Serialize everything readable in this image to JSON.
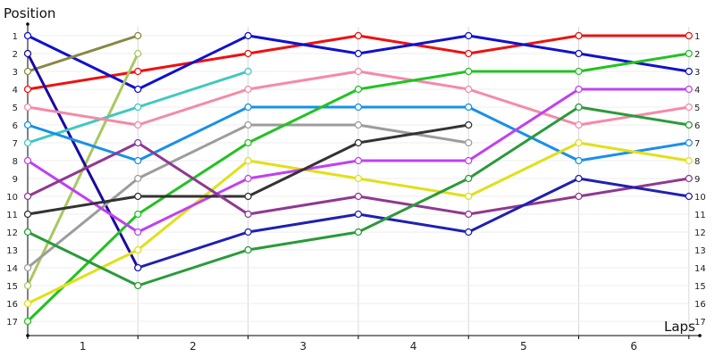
{
  "chart_data": {
    "type": "line",
    "ylabel": "Position",
    "xlabel": "Laps",
    "x": [
      0,
      1,
      2,
      3,
      4,
      5,
      6
    ],
    "x_tick_labels": [
      "1",
      "2",
      "3",
      "4",
      "5",
      "6"
    ],
    "y_tick_labels": [
      "1",
      "2",
      "3",
      "4",
      "5",
      "6",
      "7",
      "8",
      "9",
      "10",
      "11",
      "12",
      "13",
      "14",
      "15",
      "16",
      "17"
    ],
    "ylim": [
      1,
      17
    ],
    "y_inverted": true,
    "grid": true,
    "series": [
      {
        "color": "#ee1111",
        "values": [
          4,
          3,
          2,
          1,
          2,
          1,
          1
        ]
      },
      {
        "color": "#1111cc",
        "values": [
          1,
          4,
          1,
          2,
          1,
          2,
          3
        ]
      },
      {
        "color": "#888844",
        "values": [
          3,
          1,
          null,
          null,
          null,
          null,
          null
        ]
      },
      {
        "color": "#a8c860",
        "values": [
          15,
          2,
          null,
          null,
          null,
          null,
          null
        ]
      },
      {
        "color": "#1a0aa0",
        "values": [
          2,
          14,
          null,
          null,
          null,
          null,
          null
        ]
      },
      {
        "color": "#40c8c0",
        "values": [
          7,
          5,
          3,
          null,
          null,
          null,
          null
        ]
      },
      {
        "color": "#f48aa8",
        "values": [
          5,
          6,
          4,
          3,
          4,
          6,
          5
        ]
      },
      {
        "color": "#1890e8",
        "values": [
          6,
          8,
          5,
          5,
          5,
          8,
          7
        ]
      },
      {
        "color": "#9c9c9c",
        "values": [
          14,
          9,
          6,
          6,
          7,
          null,
          null
        ]
      },
      {
        "color": "#22c222",
        "values": [
          17,
          11,
          7,
          4,
          3,
          3,
          2
        ]
      },
      {
        "color": "#e0e018",
        "values": [
          16,
          13,
          8,
          9,
          10,
          7,
          8
        ]
      },
      {
        "color": "#c040f0",
        "values": [
          8,
          12,
          9,
          8,
          8,
          4,
          4
        ]
      },
      {
        "color": "#333333",
        "values": [
          11,
          10,
          10,
          7,
          6,
          null,
          null
        ]
      },
      {
        "color": "#903890",
        "values": [
          10,
          7,
          11,
          10,
          11,
          10,
          9
        ]
      },
      {
        "color": "#2020b0",
        "values": [
          null,
          14,
          12,
          11,
          12,
          9,
          10
        ]
      },
      {
        "color": "#2a9a3a",
        "values": [
          12,
          15,
          13,
          12,
          9,
          5,
          6
        ]
      }
    ]
  }
}
